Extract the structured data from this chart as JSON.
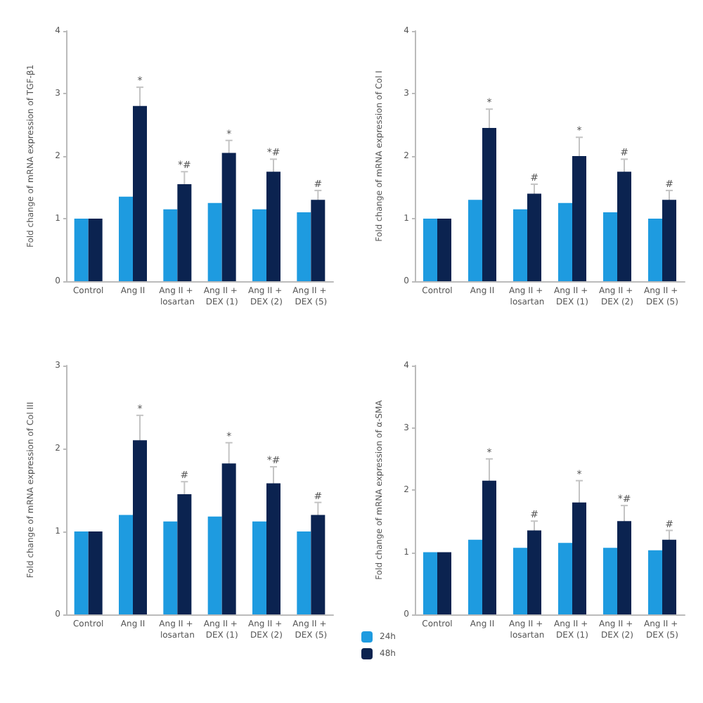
{
  "chart_data": [
    {
      "type": "bar",
      "ylabel": "Fold change of mRNA expression of TGF-β1",
      "categories": [
        "Control",
        "Ang II",
        "Ang II + losartan",
        "Ang II + DEX (1)",
        "Ang II + DEX (2)",
        "Ang II + DEX (5)"
      ],
      "series": [
        {
          "color": "#1e9be0",
          "values": [
            1.0,
            1.35,
            1.15,
            1.25,
            1.15,
            1.1
          ]
        },
        {
          "color": "#0b2350",
          "values": [
            1.0,
            2.8,
            1.55,
            2.05,
            1.75,
            1.3
          ],
          "errors": [
            null,
            0.3,
            0.2,
            0.2,
            0.2,
            0.15
          ]
        }
      ],
      "ylim": [
        0,
        4
      ],
      "yticks": [
        0,
        1,
        2,
        3,
        4
      ],
      "annotations": [
        {
          "text": "*",
          "x": "Ang II",
          "y": 3.1
        },
        {
          "text": "*#",
          "x": "Ang II + losartan",
          "y": 1.75
        },
        {
          "text": "*",
          "x": "Ang II + DEX (1)",
          "y": 2.25
        },
        {
          "text": "*#",
          "x": "Ang II + DEX (2)",
          "y": 1.95
        },
        {
          "text": "#",
          "x": "Ang II + DEX (5)",
          "y": 1.45
        }
      ]
    },
    {
      "type": "bar",
      "ylabel": "Fold change of mRNA expression of Col I",
      "categories": [
        "Control",
        "Ang II",
        "Ang II + losartan",
        "Ang II + DEX (1)",
        "Ang II + DEX (2)",
        "Ang II + DEX (5)"
      ],
      "series": [
        {
          "color": "#1e9be0",
          "values": [
            1.0,
            1.3,
            1.15,
            1.25,
            1.1,
            1.0
          ]
        },
        {
          "color": "#0b2350",
          "values": [
            1.0,
            2.45,
            1.4,
            2.0,
            1.75,
            1.3
          ],
          "errors": [
            null,
            0.3,
            0.15,
            0.3,
            0.2,
            0.15
          ]
        }
      ],
      "ylim": [
        0,
        4
      ],
      "yticks": [
        0,
        1,
        2,
        3,
        4
      ],
      "annotations": [
        {
          "text": "*",
          "x": "Ang II",
          "y": 2.75
        },
        {
          "text": "#",
          "x": "Ang II + losartan",
          "y": 1.55
        },
        {
          "text": "*",
          "x": "Ang II + DEX (1)",
          "y": 2.3
        },
        {
          "text": "#",
          "x": "Ang II + DEX (2)",
          "y": 1.95
        },
        {
          "text": "#",
          "x": "Ang II + DEX (5)",
          "y": 1.45
        }
      ]
    },
    {
      "type": "bar",
      "ylabel": "Fold change of mRNA expression of Col III",
      "categories": [
        "Control",
        "Ang II",
        "Ang II + losartan",
        "Ang II + DEX (1)",
        "Ang II + DEX (2)",
        "Ang II + DEX (5)"
      ],
      "series": [
        {
          "color": "#1e9be0",
          "values": [
            1.0,
            1.2,
            1.12,
            1.18,
            1.12,
            1.0
          ]
        },
        {
          "color": "#0b2350",
          "values": [
            1.0,
            2.1,
            1.45,
            1.82,
            1.58,
            1.2
          ],
          "errors": [
            null,
            0.3,
            0.15,
            0.25,
            0.2,
            0.15
          ]
        }
      ],
      "ylim": [
        0,
        3
      ],
      "yticks": [
        0,
        1,
        2,
        3
      ],
      "annotations": [
        {
          "text": "*",
          "x": "Ang II",
          "y": 2.4
        },
        {
          "text": "#",
          "x": "Ang II + losartan",
          "y": 1.6
        },
        {
          "text": "*",
          "x": "Ang II + DEX (1)",
          "y": 2.07
        },
        {
          "text": "*#",
          "x": "Ang II + DEX (2)",
          "y": 1.78
        },
        {
          "text": "#",
          "x": "Ang II + DEX (5)",
          "y": 1.35
        }
      ]
    },
    {
      "type": "bar",
      "ylabel": "Fold change of mRNA expression of α-SMA",
      "categories": [
        "Control",
        "Ang II",
        "Ang II + losartan",
        "Ang II + DEX (1)",
        "Ang II + DEX (2)",
        "Ang II + DEX (5)"
      ],
      "series": [
        {
          "name": "24h",
          "color": "#1e9be0",
          "values": [
            1.0,
            1.2,
            1.07,
            1.15,
            1.07,
            1.03
          ]
        },
        {
          "name": "48h",
          "color": "#0b2350",
          "values": [
            1.0,
            2.15,
            1.35,
            1.8,
            1.5,
            1.2
          ],
          "errors": [
            null,
            0.35,
            0.15,
            0.35,
            0.25,
            0.15
          ]
        }
      ],
      "ylim": [
        0,
        4
      ],
      "yticks": [
        0,
        1,
        2,
        3,
        4
      ],
      "legend": "bottom left",
      "annotations": [
        {
          "text": "*",
          "x": "Ang II",
          "y": 2.5
        },
        {
          "text": "#",
          "x": "Ang II + losartan",
          "y": 1.5
        },
        {
          "text": "*",
          "x": "Ang II + DEX (1)",
          "y": 2.15
        },
        {
          "text": "*#",
          "x": "Ang II + DEX (2)",
          "y": 1.75
        },
        {
          "text": "#",
          "x": "Ang II + DEX (5)",
          "y": 1.35
        }
      ]
    }
  ]
}
